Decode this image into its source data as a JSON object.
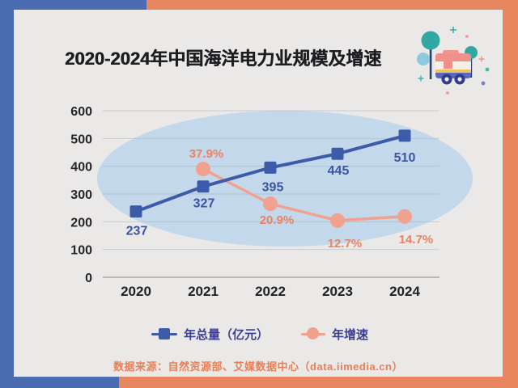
{
  "header": {
    "title": "2020-2024年中国海洋电力业规模及增速"
  },
  "chart_data": {
    "type": "line",
    "title": "2020-2024年中国海洋电力业规模及增速",
    "categories": [
      "2020",
      "2021",
      "2022",
      "2023",
      "2024"
    ],
    "series": [
      {
        "name": "年总量（亿元）",
        "marker": "square",
        "color": "#3c5caa",
        "label_color": "#3b55a4",
        "axis": "left",
        "values": [
          237,
          327,
          395,
          445,
          510
        ],
        "labels": [
          "237",
          "327",
          "395",
          "445",
          "510"
        ]
      },
      {
        "name": "年增速",
        "marker": "circle",
        "color": "#f0a28e",
        "label_color": "#ea8263",
        "axis": "right",
        "values": [
          null,
          37.9,
          20.9,
          12.7,
          14.7
        ],
        "labels": [
          null,
          "37.9%",
          "20.9%",
          "12.7%",
          "14.7%"
        ]
      }
    ],
    "y_left": {
      "min": 0,
      "max": 600,
      "ticks": [
        0,
        100,
        200,
        300,
        400,
        500,
        600
      ]
    },
    "grid": true,
    "legend_position": "bottom",
    "background_ellipse_color": "#c3d8eb"
  },
  "legend": {
    "items": [
      {
        "label": "年总量（亿元）",
        "marker": "square",
        "color": "#3c5caa"
      },
      {
        "label": "年增速",
        "marker": "circle",
        "color": "#f0a18c"
      }
    ]
  },
  "footer": {
    "source": "数据来源：自然资源部、艾媒数据中心（data.iimedia.cn）"
  },
  "frame": {
    "blue": "#4b6cb0",
    "orange": "#e8865f",
    "panel": "#eae9e7"
  }
}
